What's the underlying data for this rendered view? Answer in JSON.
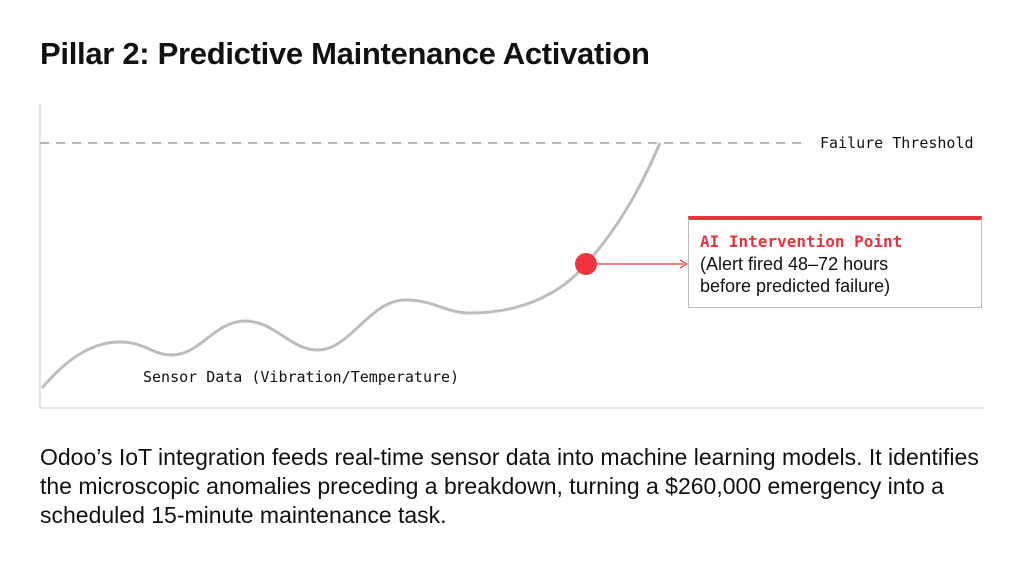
{
  "slide": {
    "title": "Pillar 2: Predictive Maintenance Activation",
    "description": "Odoo’s IoT integration feeds real-time sensor data into machine learning models. It identifies the microscopic anomalies preceding a breakdown, turning a $260,000 emergency into a scheduled 15-minute maintenance task."
  },
  "diagram": {
    "threshold_label": "Failure Threshold",
    "series_label": "Sensor Data (Vibration/Temperature)",
    "callout": {
      "title": "AI Intervention Point",
      "body": "(Alert fired 48–72 hours before predicted failure)"
    },
    "colors": {
      "curve": "#bdbdbd",
      "threshold": "#9e9e9e",
      "accent": "#e8323c",
      "axis": "#dddddd"
    }
  }
}
